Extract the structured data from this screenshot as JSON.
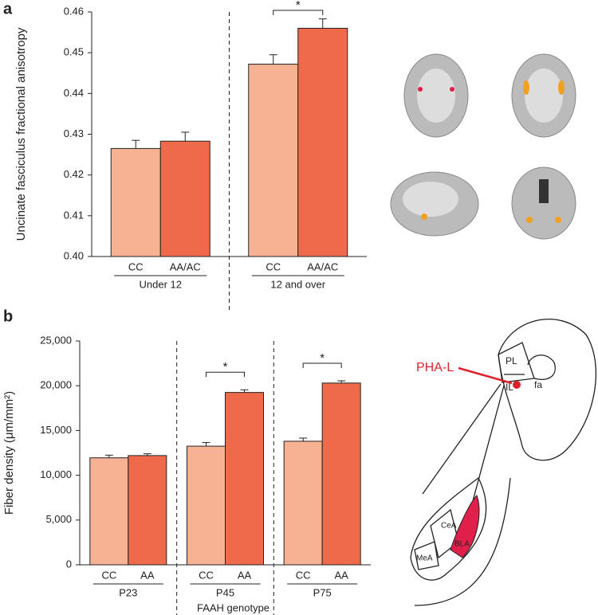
{
  "panel_labels": [
    "a",
    "b"
  ],
  "chart_data": [
    {
      "type": "bar",
      "ylabel": "Uncinate fasciculus fractional anisotropy",
      "categories": [
        "Under 12",
        "12 and over"
      ],
      "series": [
        {
          "name": "CC",
          "color": "#f7b294",
          "values": [
            0.4265,
            0.4472
          ],
          "errors": [
            0.002,
            0.0023
          ]
        },
        {
          "name": "AA/AC",
          "color": "#ee6a4a",
          "values": [
            0.4283,
            0.456
          ],
          "errors": [
            0.0022,
            0.0023
          ]
        }
      ],
      "annotations": [
        {
          "category": "12 and over",
          "text": "*"
        }
      ],
      "ylim": [
        0.4,
        0.46
      ],
      "yticks": [
        {
          "value": 0.4,
          "label": "0.40"
        },
        0.41,
        0.42,
        0.43,
        0.44,
        0.45,
        0.46
      ]
    },
    {
      "type": "bar",
      "ylabel": "Fiber density (μm/mm²)",
      "xlabel": "FAAH genotype",
      "categories": [
        "P23",
        "P45",
        "P75"
      ],
      "series": [
        {
          "name": "CC",
          "color": "#f7b294",
          "values": [
            11950,
            13250,
            13800
          ],
          "errors": [
            300,
            400,
            350
          ]
        },
        {
          "name": "AA",
          "color": "#ee6a4a",
          "values": [
            12200,
            19250,
            20300
          ],
          "errors": [
            200,
            300,
            250
          ]
        }
      ],
      "annotations": [
        {
          "category": "P45",
          "text": "*"
        },
        {
          "category": "P75",
          "text": "*"
        }
      ],
      "ylim": [
        0,
        25000
      ],
      "yticks": [
        0,
        {
          "value": 5000,
          "label": "5,000"
        },
        {
          "value": 10000,
          "label": "10,000"
        },
        {
          "value": 15000,
          "label": "15,000"
        },
        {
          "value": 20000,
          "label": "20,000"
        },
        {
          "value": 25000,
          "label": "25,000"
        }
      ]
    }
  ],
  "diagram": {
    "injection_label": "PHA-L",
    "regions": [
      "PL",
      "IL",
      "fa",
      "CeA",
      "BLA",
      "MeA"
    ]
  }
}
